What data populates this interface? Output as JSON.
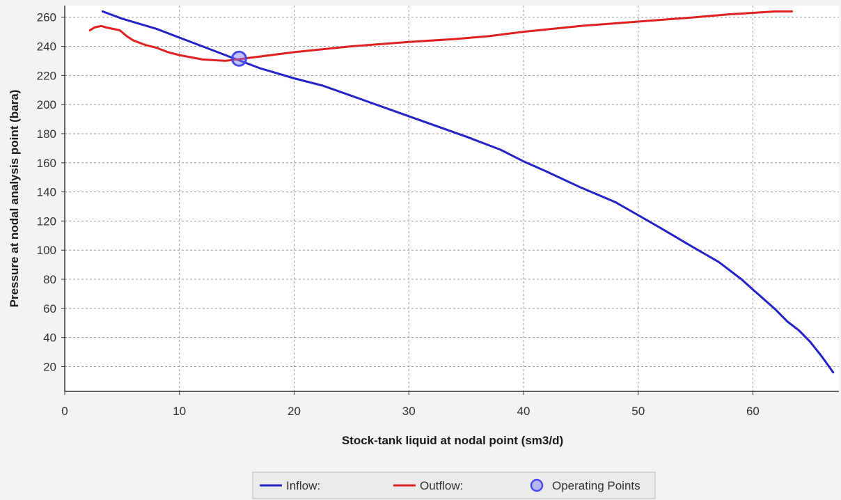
{
  "chart_data": {
    "type": "line",
    "xlabel": "Stock-tank liquid at nodal point (sm3/d)",
    "ylabel": "Pressure at nodal analysis point (bara)",
    "xlim": [
      0,
      67.5
    ],
    "ylim": [
      3,
      268
    ],
    "x_ticks": [
      0,
      10,
      20,
      30,
      40,
      50,
      60
    ],
    "y_ticks": [
      20,
      40,
      60,
      80,
      100,
      120,
      140,
      160,
      180,
      200,
      220,
      240,
      260
    ],
    "grid": true,
    "legend_position": "bottom",
    "series": [
      {
        "name": "Inflow:",
        "color": "#2323c8",
        "x": [
          3.3,
          5,
          8,
          10,
          12,
          14,
          15,
          17,
          20,
          22.5,
          25,
          30,
          35,
          38,
          40,
          42,
          45,
          48,
          50,
          52,
          55,
          57,
          59,
          60,
          61,
          62,
          63,
          64,
          65,
          66,
          67
        ],
        "y": [
          264,
          259,
          252,
          246,
          240,
          234,
          231,
          225,
          218,
          213,
          206,
          192,
          178,
          169,
          161,
          154,
          143,
          133,
          124,
          115,
          101,
          92,
          80,
          73,
          66,
          59,
          51,
          45,
          37,
          27,
          16
        ]
      },
      {
        "name": "Outflow:",
        "color": "#e02020",
        "x": [
          2.2,
          2.6,
          3.2,
          3.6,
          4.2,
          4.8,
          5.4,
          6,
          7,
          8,
          9,
          10,
          12,
          14,
          15,
          16,
          18,
          20,
          25,
          30,
          34,
          37,
          40,
          45,
          50,
          55,
          58,
          60,
          62,
          63.4
        ],
        "y": [
          251,
          253,
          254,
          253,
          252,
          251,
          247,
          244,
          241,
          239,
          236,
          234,
          231,
          230,
          231,
          232,
          234,
          236,
          240,
          243,
          245,
          247,
          250,
          254,
          257,
          260,
          262,
          263,
          264,
          264
        ]
      }
    ],
    "operating_points": {
      "name": "Operating Points",
      "color": "#4a4ae8",
      "points": [
        {
          "x": 15.2,
          "y": 231.5
        }
      ]
    }
  }
}
